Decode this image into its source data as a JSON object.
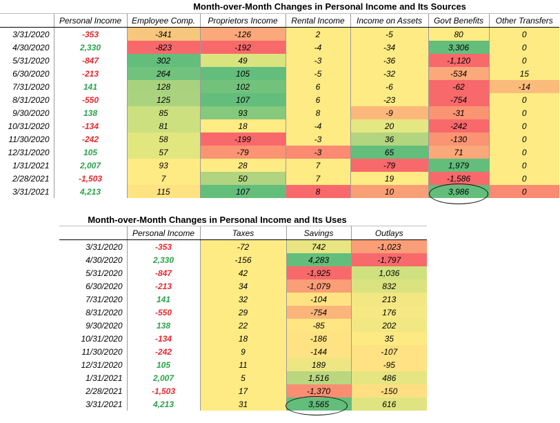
{
  "sources": {
    "title": "Month-over-Month Changes in Personal Income and Its Sources",
    "headers": [
      "",
      "Personal Income",
      "Employee Comp.",
      "Proprietors Income",
      "Rental Income",
      "Income on Assets",
      "Govt Benefits",
      "Other Transfers"
    ],
    "rows": [
      [
        "3/31/2020",
        "-353",
        "-341",
        "-126",
        "2",
        "-5",
        "80",
        "0"
      ],
      [
        "4/30/2020",
        "2,330",
        "-823",
        "-192",
        "-4",
        "-34",
        "3,306",
        "0"
      ],
      [
        "5/31/2020",
        "-847",
        "302",
        "49",
        "-3",
        "-36",
        "-1,120",
        "0"
      ],
      [
        "6/30/2020",
        "-213",
        "264",
        "105",
        "-5",
        "-32",
        "-534",
        "15"
      ],
      [
        "7/31/2020",
        "141",
        "128",
        "102",
        "6",
        "-6",
        "-62",
        "-14"
      ],
      [
        "8/31/2020",
        "-550",
        "125",
        "107",
        "6",
        "-23",
        "-754",
        "0"
      ],
      [
        "9/30/2020",
        "138",
        "85",
        "93",
        "8",
        "-9",
        "-31",
        "0"
      ],
      [
        "10/31/2020",
        "-134",
        "81",
        "18",
        "-4",
        "20",
        "-242",
        "0"
      ],
      [
        "11/30/2020",
        "-242",
        "58",
        "-199",
        "-3",
        "36",
        "-130",
        "0"
      ],
      [
        "12/31/2020",
        "105",
        "57",
        "-79",
        "-3",
        "65",
        "71",
        "0"
      ],
      [
        "1/31/2021",
        "2,007",
        "93",
        "28",
        "7",
        "-79",
        "1,979",
        "0"
      ],
      [
        "2/28/2021",
        "-1,503",
        "7",
        "50",
        "7",
        "19",
        "-1,586",
        "0"
      ],
      [
        "3/31/2021",
        "4,213",
        "115",
        "107",
        "8",
        "10",
        "3,986",
        "0"
      ]
    ],
    "colors": {
      "employee": [
        "#f6c77c",
        "#f8696b",
        "#63be7b",
        "#70c27c",
        "#a9d27f",
        "#abd37f",
        "#cde07f",
        "#cde07f",
        "#e2e67f",
        "#e2e67f",
        "#ffeb84",
        "#ffeb84",
        "#ffe383"
      ],
      "proprietors": [
        "#fba87a",
        "#f8696b",
        "#dae47f",
        "#63be7b",
        "#72c27c",
        "#63be7b",
        "#85c97d",
        "#ffeb84",
        "#f8696b",
        "#fa9473",
        "#ffeb84",
        "#b0d47f",
        "#63be7b"
      ],
      "rental": [
        "#ffeb84",
        "#ffeb84",
        "#ffeb84",
        "#ffeb84",
        "#ffeb84",
        "#ffeb84",
        "#ffeb84",
        "#ffeb84",
        "#ffeb84",
        "#fa8a72",
        "#ffeb84",
        "#ffeb84",
        "#f8696b"
      ],
      "assets": [
        "#ffeb84",
        "#ffeb84",
        "#ffeb84",
        "#ffeb84",
        "#ffeb84",
        "#ffeb84",
        "#fcb87a",
        "#e5e782",
        "#b4d57f",
        "#63be7b",
        "#f8696b",
        "#ffeb84",
        "#fa9f75"
      ],
      "govt": [
        "#ffeb84",
        "#63be7b",
        "#f8696b",
        "#fba87a",
        "#f8696b",
        "#f8696b",
        "#fa9473",
        "#f8696b",
        "#fa9473",
        "#fba87a",
        "#63be7b",
        "#f8696b",
        "#63be7b"
      ],
      "other": [
        "#ffeb84",
        "#ffeb84",
        "#ffeb84",
        "#ffeb84",
        "#fbbc7b",
        "#ffeb84",
        "#ffeb84",
        "#ffeb84",
        "#ffeb84",
        "#ffeb84",
        "#ffeb84",
        "#ffeb84",
        "#fa8a72"
      ]
    }
  },
  "uses": {
    "title": "Month-over-Month Changes in Personal Income and Its Uses",
    "headers": [
      "",
      "Personal Income",
      "Taxes",
      "Savings",
      "Outlays"
    ],
    "rows": [
      [
        "3/31/2020",
        "-353",
        "-72",
        "742",
        "-1,023"
      ],
      [
        "4/30/2020",
        "2,330",
        "-156",
        "4,283",
        "-1,797"
      ],
      [
        "5/31/2020",
        "-847",
        "42",
        "-1,925",
        "1,036"
      ],
      [
        "6/30/2020",
        "-213",
        "34",
        "-1,079",
        "832"
      ],
      [
        "7/31/2020",
        "141",
        "32",
        "-104",
        "213"
      ],
      [
        "8/31/2020",
        "-550",
        "29",
        "-754",
        "176"
      ],
      [
        "9/30/2020",
        "138",
        "22",
        "-85",
        "202"
      ],
      [
        "10/31/2020",
        "-134",
        "18",
        "-186",
        "35"
      ],
      [
        "11/30/2020",
        "-242",
        "9",
        "-144",
        "-107"
      ],
      [
        "12/31/2020",
        "105",
        "11",
        "189",
        "-95"
      ],
      [
        "1/31/2021",
        "2,007",
        "5",
        "1,516",
        "486"
      ],
      [
        "2/28/2021",
        "-1,503",
        "17",
        "-1,370",
        "-150"
      ],
      [
        "3/31/2021",
        "4,213",
        "31",
        "3,565",
        "616"
      ]
    ],
    "colors": {
      "taxes": [
        "#ffeb84",
        "#ffeb84",
        "#ffeb84",
        "#ffeb84",
        "#ffeb84",
        "#ffeb84",
        "#ffeb84",
        "#ffeb84",
        "#ffeb84",
        "#ffeb84",
        "#ffeb84",
        "#ffeb84",
        "#ffeb84"
      ],
      "savings": [
        "#e8e582",
        "#63be7b",
        "#f8696b",
        "#fa9e77",
        "#ffe383",
        "#fbb57a",
        "#ffe683",
        "#ffe383",
        "#ffe283",
        "#eee683",
        "#bad780",
        "#fa8e72",
        "#63be7b"
      ],
      "outlays": [
        "#fa9e77",
        "#f8696b",
        "#cfe17f",
        "#dae37f",
        "#f2e783",
        "#f6e883",
        "#f1e883",
        "#fdea83",
        "#ffe283",
        "#ffe283",
        "#e5e581",
        "#ffdf82",
        "#dfe480"
      ]
    }
  }
}
